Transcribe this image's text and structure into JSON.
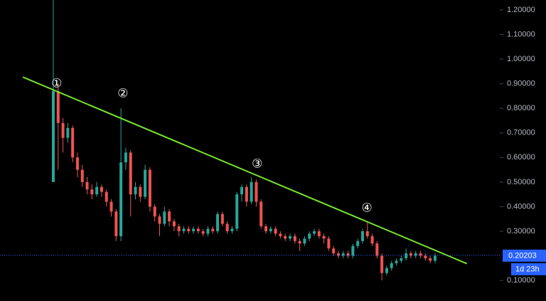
{
  "chart_data": {
    "type": "candlestick",
    "ohlc": [
      [
        0.5,
        1.24,
        0.5,
        0.87
      ],
      [
        0.87,
        0.9,
        0.55,
        0.74
      ],
      [
        0.74,
        0.76,
        0.62,
        0.68
      ],
      [
        0.68,
        0.74,
        0.66,
        0.72
      ],
      [
        0.72,
        0.73,
        0.58,
        0.6
      ],
      [
        0.6,
        0.62,
        0.52,
        0.55
      ],
      [
        0.55,
        0.57,
        0.48,
        0.5
      ],
      [
        0.5,
        0.52,
        0.45,
        0.47
      ],
      [
        0.47,
        0.49,
        0.43,
        0.45
      ],
      [
        0.45,
        0.5,
        0.44,
        0.48
      ],
      [
        0.48,
        0.49,
        0.44,
        0.46
      ],
      [
        0.46,
        0.47,
        0.4,
        0.42
      ],
      [
        0.42,
        0.43,
        0.36,
        0.38
      ],
      [
        0.38,
        0.39,
        0.26,
        0.28
      ],
      [
        0.28,
        0.8,
        0.26,
        0.58
      ],
      [
        0.58,
        0.64,
        0.55,
        0.62
      ],
      [
        0.62,
        0.63,
        0.36,
        0.45
      ],
      [
        0.45,
        0.5,
        0.43,
        0.48
      ],
      [
        0.48,
        0.49,
        0.42,
        0.44
      ],
      [
        0.44,
        0.57,
        0.43,
        0.55
      ],
      [
        0.55,
        0.56,
        0.38,
        0.4
      ],
      [
        0.4,
        0.41,
        0.34,
        0.36
      ],
      [
        0.36,
        0.37,
        0.28,
        0.33
      ],
      [
        0.33,
        0.4,
        0.32,
        0.38
      ],
      [
        0.38,
        0.39,
        0.32,
        0.34
      ],
      [
        0.34,
        0.35,
        0.3,
        0.32
      ],
      [
        0.32,
        0.33,
        0.28,
        0.3
      ],
      [
        0.3,
        0.32,
        0.29,
        0.31
      ],
      [
        0.31,
        0.32,
        0.29,
        0.3
      ],
      [
        0.3,
        0.32,
        0.29,
        0.31
      ],
      [
        0.31,
        0.32,
        0.29,
        0.3
      ],
      [
        0.3,
        0.31,
        0.28,
        0.29
      ],
      [
        0.29,
        0.32,
        0.28,
        0.31
      ],
      [
        0.31,
        0.32,
        0.29,
        0.3
      ],
      [
        0.3,
        0.38,
        0.29,
        0.37
      ],
      [
        0.37,
        0.38,
        0.32,
        0.33
      ],
      [
        0.33,
        0.34,
        0.29,
        0.3
      ],
      [
        0.3,
        0.32,
        0.29,
        0.31
      ],
      [
        0.31,
        0.46,
        0.3,
        0.45
      ],
      [
        0.45,
        0.49,
        0.42,
        0.48
      ],
      [
        0.48,
        0.49,
        0.4,
        0.42
      ],
      [
        0.42,
        0.52,
        0.41,
        0.5
      ],
      [
        0.5,
        0.51,
        0.4,
        0.42
      ],
      [
        0.42,
        0.43,
        0.31,
        0.32
      ],
      [
        0.32,
        0.33,
        0.29,
        0.3
      ],
      [
        0.3,
        0.32,
        0.29,
        0.31
      ],
      [
        0.31,
        0.32,
        0.28,
        0.29
      ],
      [
        0.29,
        0.3,
        0.27,
        0.28
      ],
      [
        0.28,
        0.29,
        0.26,
        0.27
      ],
      [
        0.27,
        0.29,
        0.26,
        0.28
      ],
      [
        0.28,
        0.29,
        0.25,
        0.26
      ],
      [
        0.26,
        0.27,
        0.22,
        0.25
      ],
      [
        0.25,
        0.28,
        0.24,
        0.27
      ],
      [
        0.27,
        0.3,
        0.26,
        0.29
      ],
      [
        0.29,
        0.31,
        0.28,
        0.3
      ],
      [
        0.3,
        0.31,
        0.27,
        0.28
      ],
      [
        0.28,
        0.29,
        0.25,
        0.27
      ],
      [
        0.27,
        0.28,
        0.22,
        0.23
      ],
      [
        0.23,
        0.24,
        0.2,
        0.21
      ],
      [
        0.21,
        0.22,
        0.19,
        0.2
      ],
      [
        0.2,
        0.22,
        0.19,
        0.21
      ],
      [
        0.21,
        0.22,
        0.19,
        0.2
      ],
      [
        0.2,
        0.25,
        0.19,
        0.24
      ],
      [
        0.24,
        0.27,
        0.23,
        0.26
      ],
      [
        0.26,
        0.31,
        0.25,
        0.3
      ],
      [
        0.3,
        0.34,
        0.27,
        0.28
      ],
      [
        0.28,
        0.29,
        0.24,
        0.25
      ],
      [
        0.25,
        0.26,
        0.19,
        0.2
      ],
      [
        0.2,
        0.21,
        0.1,
        0.13
      ],
      [
        0.13,
        0.16,
        0.12,
        0.15
      ],
      [
        0.15,
        0.18,
        0.14,
        0.17
      ],
      [
        0.17,
        0.19,
        0.16,
        0.18
      ],
      [
        0.18,
        0.2,
        0.17,
        0.19
      ],
      [
        0.19,
        0.23,
        0.18,
        0.21
      ],
      [
        0.21,
        0.22,
        0.19,
        0.2
      ],
      [
        0.2,
        0.22,
        0.19,
        0.21
      ],
      [
        0.21,
        0.22,
        0.19,
        0.2
      ],
      [
        0.2,
        0.21,
        0.18,
        0.19
      ],
      [
        0.19,
        0.2,
        0.17,
        0.18
      ],
      [
        0.18,
        0.21,
        0.17,
        0.2
      ]
    ],
    "up_color": "#26a69a",
    "down_color": "#ef5350",
    "xlim": [
      -11.03,
      91.96
    ],
    "ylim": [
      0.0162,
      1.2405
    ],
    "yticks": [
      {
        "value": 1.2,
        "label": "1.20000"
      },
      {
        "value": 1.1,
        "label": "1.10000"
      },
      {
        "value": 1.0,
        "label": "1.00000"
      },
      {
        "value": 0.9,
        "label": "0.90000"
      },
      {
        "value": 0.8,
        "label": "0.80000"
      },
      {
        "value": 0.7,
        "label": "0.70000"
      },
      {
        "value": 0.6,
        "label": "0.60000"
      },
      {
        "value": 0.5,
        "label": "0.50000"
      },
      {
        "value": 0.4,
        "label": "0.40000"
      },
      {
        "value": 0.3,
        "label": "0.30000"
      },
      {
        "value": 0.1,
        "label": "0.10000"
      }
    ],
    "current_price": 0.20203,
    "countdown": "1d 23h",
    "price_color": "#2962ff",
    "trendline": {
      "x": [
        -6.3,
        85.6
      ],
      "y": [
        0.927,
        0.168
      ],
      "color": "#76e32c"
    },
    "annotations": [
      {
        "text": "①",
        "x": 0.7,
        "y": 0.899
      },
      {
        "text": "②",
        "x": 14.4,
        "y": 0.858
      },
      {
        "text": "③",
        "x": 42.2,
        "y": 0.572
      },
      {
        "text": "④",
        "x": 64.9,
        "y": 0.392
      }
    ]
  }
}
